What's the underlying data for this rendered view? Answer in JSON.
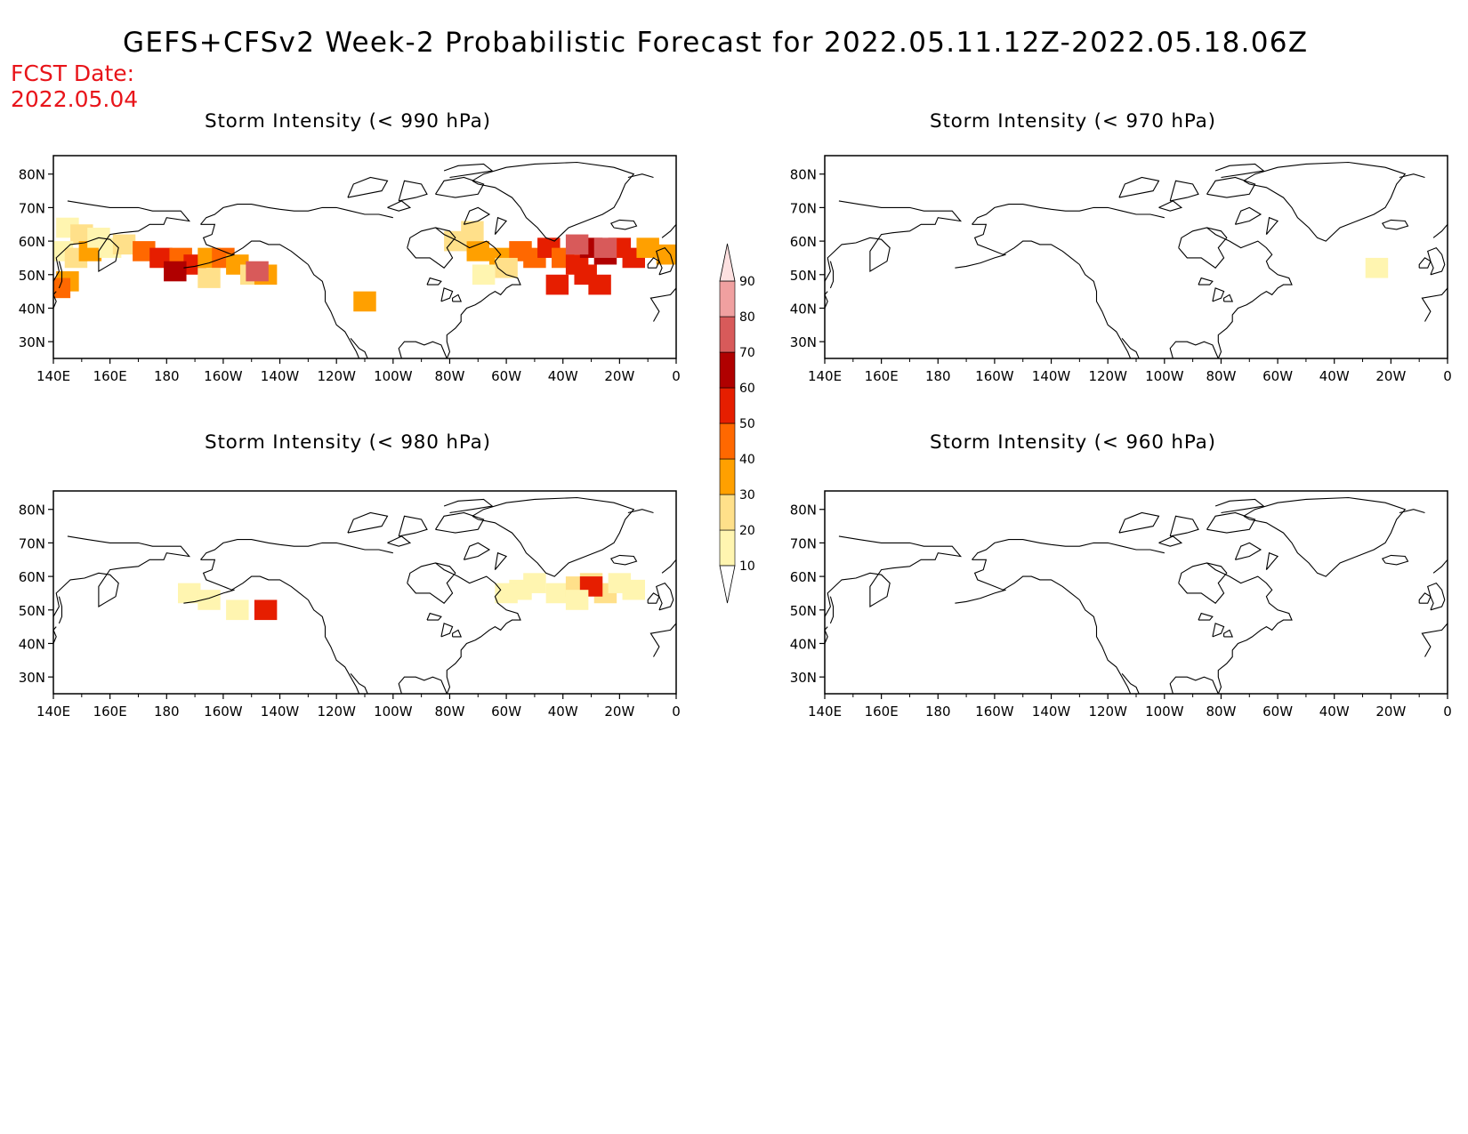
{
  "title": "GEFS+CFSv2 Week-2 Probabilistic Forecast for 2022.05.11.12Z-2022.05.18.06Z",
  "fcst_label": "FCST Date:",
  "fcst_date": "2022.05.04",
  "lon_labels": [
    "140E",
    "160E",
    "180",
    "160W",
    "140W",
    "120W",
    "100W",
    "80W",
    "60W",
    "40W",
    "20W",
    "0"
  ],
  "lat_labels": [
    "80N",
    "70N",
    "60N",
    "50N",
    "40N",
    "30N"
  ],
  "panels": [
    {
      "id": "p990",
      "title": "Storm Intensity (< 990 hPa)"
    },
    {
      "id": "p970",
      "title": "Storm Intensity (< 970 hPa)"
    },
    {
      "id": "p980",
      "title": "Storm Intensity (< 980 hPa)"
    },
    {
      "id": "p960",
      "title": "Storm Intensity (< 960 hPa)"
    }
  ],
  "colorbar": {
    "levels": [
      10,
      20,
      30,
      40,
      50,
      60,
      70,
      80,
      90
    ],
    "labels": [
      "10",
      "20",
      "30",
      "40",
      "50",
      "60",
      "70",
      "80",
      "90"
    ],
    "colors": [
      "#fff5b0",
      "#ffe08a",
      "#ffa000",
      "#ff6800",
      "#e61e00",
      "#b00000",
      "#d85a5a",
      "#f0a0a0",
      "#fde0e0"
    ]
  },
  "probability_cells": {
    "p990": [
      [
        145,
        64,
        1
      ],
      [
        150,
        62,
        2
      ],
      [
        143,
        57,
        1
      ],
      [
        148,
        55,
        2
      ],
      [
        153,
        57,
        3
      ],
      [
        160,
        58,
        1
      ],
      [
        145,
        48,
        3
      ],
      [
        142,
        46,
        4
      ],
      [
        156,
        61,
        1
      ],
      [
        165,
        59,
        2
      ],
      [
        172,
        57,
        4
      ],
      [
        178,
        55,
        5
      ],
      [
        185,
        55,
        4
      ],
      [
        190,
        53,
        5
      ],
      [
        195,
        55,
        3
      ],
      [
        200,
        55,
        4
      ],
      [
        205,
        53,
        3
      ],
      [
        210,
        50,
        2
      ],
      [
        215,
        50,
        3
      ],
      [
        183,
        51,
        6
      ],
      [
        212,
        51,
        7
      ],
      [
        195,
        49,
        2
      ],
      [
        282,
        60,
        2
      ],
      [
        290,
        57,
        3
      ],
      [
        298,
        55,
        3
      ],
      [
        305,
        57,
        4
      ],
      [
        310,
        55,
        4
      ],
      [
        315,
        58,
        5
      ],
      [
        320,
        55,
        4
      ],
      [
        325,
        53,
        5
      ],
      [
        330,
        58,
        6
      ],
      [
        335,
        56,
        6
      ],
      [
        340,
        58,
        5
      ],
      [
        345,
        55,
        5
      ],
      [
        350,
        58,
        3
      ],
      [
        328,
        50,
        5
      ],
      [
        333,
        47,
        5
      ],
      [
        318,
        47,
        5
      ],
      [
        325,
        59,
        7
      ],
      [
        335,
        58,
        7
      ],
      [
        300,
        52,
        2
      ],
      [
        292,
        50,
        1
      ],
      [
        288,
        63,
        2
      ],
      [
        357,
        56,
        3
      ],
      [
        250,
        42,
        3
      ]
    ],
    "p970": [
      [
        335,
        52,
        1
      ]
    ],
    "p980": [
      [
        188,
        55,
        1
      ],
      [
        195,
        53,
        1
      ],
      [
        205,
        50,
        1
      ],
      [
        215,
        50,
        5
      ],
      [
        305,
        56,
        1
      ],
      [
        310,
        58,
        1
      ],
      [
        318,
        55,
        1
      ],
      [
        325,
        57,
        2
      ],
      [
        330,
        58,
        2
      ],
      [
        335,
        55,
        2
      ],
      [
        340,
        58,
        1
      ],
      [
        330,
        57,
        5
      ],
      [
        300,
        55,
        1
      ],
      [
        345,
        56,
        1
      ],
      [
        325,
        53,
        1
      ]
    ],
    "p960": []
  },
  "colors": {
    "title": "#000000",
    "fcst": "#e8141a",
    "coast": "#000000"
  }
}
